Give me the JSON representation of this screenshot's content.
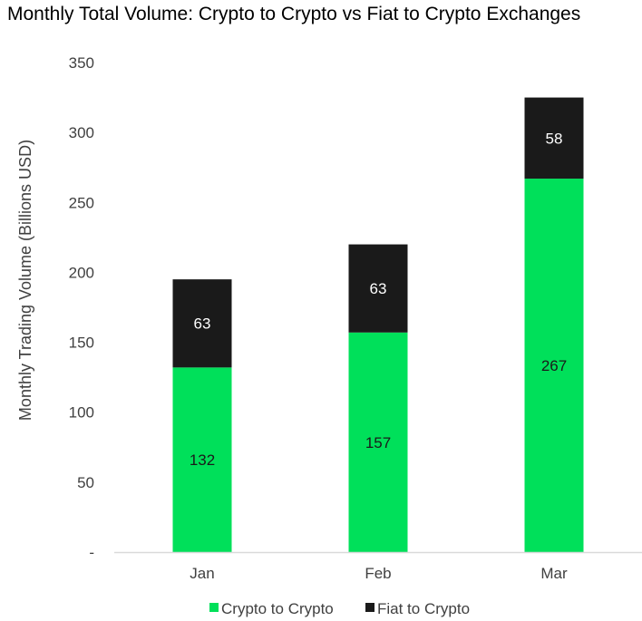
{
  "chart_data": {
    "type": "bar",
    "stacked": true,
    "title": "Monthly Total Volume: Crypto to Crypto vs Fiat to Crypto Exchanges",
    "xlabel": "",
    "ylabel": "Monthly Trading Volume (Billions USD)",
    "categories": [
      "Jan",
      "Feb",
      "Mar"
    ],
    "series": [
      {
        "name": "Crypto to Crypto",
        "values": [
          132,
          157,
          267
        ],
        "color": "#00e05a",
        "label_color": "#1a1a1a"
      },
      {
        "name": "Fiat to Crypto",
        "values": [
          63,
          63,
          58
        ],
        "color": "#1a1a1a",
        "label_color": "#ffffff"
      }
    ],
    "ylim": [
      0,
      350
    ],
    "yticks": [
      0,
      50,
      100,
      150,
      200,
      250,
      300,
      350
    ],
    "ytick_labels": [
      "-",
      "50",
      "100",
      "150",
      "200",
      "250",
      "300",
      "350"
    ],
    "grid": false,
    "legend_position": "bottom",
    "axis_color": "#d9d9d9"
  }
}
